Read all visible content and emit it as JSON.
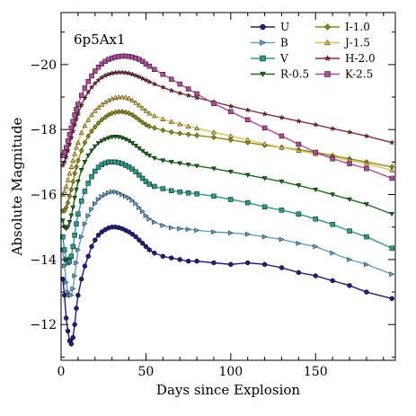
{
  "chart_data": {
    "type": "line",
    "annotation": "6p5Ax1",
    "xlabel": "Days since Explosion",
    "ylabel": "Absolute Magnitude",
    "xlim": [
      0,
      197
    ],
    "ylim": [
      -10.9,
      -21.6
    ],
    "y_inverted": true,
    "xticks": [
      0,
      50,
      100,
      150
    ],
    "yticks": [
      -12,
      -14,
      -16,
      -18,
      -20
    ],
    "grid": false,
    "legend": "top-right, two columns",
    "series": [
      {
        "name": "U",
        "color": "#1f1f7a",
        "marker": "circle",
        "x": [
          1,
          2,
          3,
          4,
          5,
          6,
          7,
          8,
          9,
          10,
          12,
          14,
          16,
          18,
          20,
          22,
          24,
          26,
          28,
          30,
          32,
          34,
          36,
          38,
          40,
          42,
          44,
          46,
          48,
          50,
          52,
          55,
          60,
          65,
          70,
          75,
          80,
          90,
          100,
          110,
          120,
          130,
          140,
          150,
          160,
          170,
          180,
          195
        ],
        "y": [
          -13.4,
          -12.9,
          -12.2,
          -11.8,
          -11.5,
          -11.4,
          -11.6,
          -12.0,
          -12.5,
          -12.9,
          -13.4,
          -13.8,
          -14.1,
          -14.4,
          -14.6,
          -14.75,
          -14.85,
          -14.92,
          -14.97,
          -15.0,
          -15.0,
          -14.98,
          -14.95,
          -14.9,
          -14.85,
          -14.78,
          -14.7,
          -14.6,
          -14.5,
          -14.4,
          -14.3,
          -14.2,
          -14.1,
          -14.05,
          -14.0,
          -13.95,
          -13.95,
          -13.9,
          -13.85,
          -13.9,
          -13.85,
          -13.75,
          -13.6,
          -13.5,
          -13.35,
          -13.2,
          -13.0,
          -12.8
        ]
      },
      {
        "name": "B",
        "color": "#5fa0c8",
        "marker": "triangle-right",
        "x": [
          1,
          2,
          3,
          4,
          5,
          6,
          7,
          8,
          9,
          10,
          12,
          14,
          16,
          18,
          20,
          22,
          24,
          26,
          28,
          30,
          32,
          34,
          36,
          38,
          40,
          42,
          44,
          46,
          48,
          50,
          52,
          55,
          60,
          65,
          70,
          75,
          80,
          90,
          100,
          110,
          120,
          130,
          140,
          150,
          160,
          170,
          180,
          195
        ],
        "y": [
          -14.3,
          -13.8,
          -13.3,
          -13.0,
          -12.9,
          -12.9,
          -13.1,
          -13.5,
          -13.9,
          -14.3,
          -14.7,
          -15.1,
          -15.35,
          -15.55,
          -15.72,
          -15.85,
          -15.94,
          -16.0,
          -16.05,
          -16.08,
          -16.08,
          -16.05,
          -16.0,
          -15.95,
          -15.9,
          -15.82,
          -15.72,
          -15.6,
          -15.48,
          -15.35,
          -15.25,
          -15.15,
          -15.05,
          -14.98,
          -14.95,
          -14.93,
          -14.9,
          -14.85,
          -14.82,
          -14.78,
          -14.7,
          -14.62,
          -14.5,
          -14.4,
          -14.2,
          -14.0,
          -13.85,
          -13.55
        ]
      },
      {
        "name": "V",
        "color": "#2a9a8a",
        "marker": "square",
        "x": [
          1,
          2,
          3,
          4,
          5,
          6,
          7,
          8,
          9,
          10,
          12,
          14,
          16,
          18,
          20,
          22,
          24,
          26,
          28,
          30,
          32,
          34,
          36,
          38,
          40,
          42,
          44,
          46,
          48,
          50,
          52,
          55,
          60,
          65,
          70,
          75,
          80,
          90,
          100,
          110,
          120,
          130,
          140,
          150,
          160,
          170,
          180,
          195
        ],
        "y": [
          -14.7,
          -14.3,
          -14.0,
          -13.9,
          -13.95,
          -14.1,
          -14.4,
          -14.75,
          -15.1,
          -15.4,
          -15.8,
          -16.1,
          -16.35,
          -16.55,
          -16.72,
          -16.84,
          -16.92,
          -16.97,
          -17.0,
          -17.0,
          -17.0,
          -16.98,
          -16.95,
          -16.9,
          -16.85,
          -16.78,
          -16.7,
          -16.6,
          -16.5,
          -16.4,
          -16.32,
          -16.25,
          -16.18,
          -16.12,
          -16.08,
          -16.05,
          -16.02,
          -15.95,
          -15.85,
          -15.75,
          -15.62,
          -15.52,
          -15.4,
          -15.25,
          -15.08,
          -14.88,
          -14.7,
          -14.35
        ]
      },
      {
        "name": "R-0.5",
        "color": "#1a6b1a",
        "marker": "triangle-down",
        "x": [
          1,
          2,
          3,
          4,
          5,
          6,
          7,
          8,
          9,
          10,
          12,
          14,
          16,
          18,
          20,
          22,
          24,
          26,
          28,
          30,
          32,
          34,
          36,
          38,
          40,
          42,
          44,
          46,
          48,
          50,
          52,
          55,
          60,
          65,
          70,
          75,
          80,
          90,
          100,
          110,
          120,
          130,
          140,
          150,
          160,
          170,
          180,
          195
        ],
        "y": [
          -15.2,
          -15.0,
          -14.95,
          -15.0,
          -15.15,
          -15.35,
          -15.6,
          -15.9,
          -16.15,
          -16.4,
          -16.75,
          -17.0,
          -17.2,
          -17.35,
          -17.48,
          -17.58,
          -17.65,
          -17.7,
          -17.74,
          -17.77,
          -17.78,
          -17.77,
          -17.74,
          -17.7,
          -17.65,
          -17.58,
          -17.5,
          -17.42,
          -17.34,
          -17.26,
          -17.2,
          -17.12,
          -17.05,
          -17.0,
          -16.96,
          -16.92,
          -16.88,
          -16.8,
          -16.7,
          -16.6,
          -16.5,
          -16.4,
          -16.28,
          -16.15,
          -16.0,
          -15.85,
          -15.7,
          -15.4
        ]
      },
      {
        "name": "I-1.0",
        "color": "#8a8a10",
        "marker": "diamond",
        "x": [
          1,
          2,
          3,
          4,
          5,
          6,
          7,
          8,
          9,
          10,
          12,
          14,
          16,
          18,
          20,
          22,
          24,
          26,
          28,
          30,
          32,
          34,
          36,
          38,
          40,
          42,
          44,
          46,
          48,
          50,
          52,
          55,
          60,
          65,
          70,
          75,
          80,
          90,
          100,
          110,
          120,
          130,
          140,
          150,
          160,
          170,
          180,
          195
        ],
        "y": [
          -15.5,
          -15.5,
          -15.6,
          -15.75,
          -15.95,
          -16.15,
          -16.4,
          -16.65,
          -16.85,
          -17.05,
          -17.35,
          -17.6,
          -17.8,
          -17.95,
          -18.08,
          -18.2,
          -18.3,
          -18.38,
          -18.45,
          -18.5,
          -18.53,
          -18.55,
          -18.55,
          -18.53,
          -18.5,
          -18.45,
          -18.38,
          -18.3,
          -18.22,
          -18.15,
          -18.1,
          -18.05,
          -17.98,
          -17.92,
          -17.88,
          -17.85,
          -17.82,
          -17.76,
          -17.68,
          -17.6,
          -17.52,
          -17.45,
          -17.38,
          -17.3,
          -17.2,
          -17.1,
          -17.0,
          -16.85
        ]
      },
      {
        "name": "J-1.5",
        "color": "#e0c050",
        "marker": "triangle-up",
        "x": [
          1,
          2,
          3,
          4,
          5,
          6,
          7,
          8,
          9,
          10,
          12,
          14,
          16,
          18,
          20,
          22,
          24,
          26,
          28,
          30,
          32,
          34,
          36,
          38,
          40,
          42,
          44,
          46,
          48,
          50,
          52,
          55,
          60,
          65,
          70,
          75,
          80,
          90,
          100,
          110,
          120,
          130,
          140,
          150,
          160,
          170,
          180,
          195
        ],
        "y": [
          -16.0,
          -16.1,
          -16.25,
          -16.45,
          -16.65,
          -16.85,
          -17.05,
          -17.25,
          -17.45,
          -17.6,
          -17.9,
          -18.12,
          -18.3,
          -18.45,
          -18.58,
          -18.68,
          -18.77,
          -18.84,
          -18.9,
          -18.95,
          -18.98,
          -19.0,
          -19.0,
          -18.99,
          -18.96,
          -18.9,
          -18.83,
          -18.75,
          -18.66,
          -18.58,
          -18.5,
          -18.42,
          -18.32,
          -18.24,
          -18.17,
          -18.1,
          -18.04,
          -17.92,
          -17.8,
          -17.68,
          -17.56,
          -17.45,
          -17.35,
          -17.25,
          -17.15,
          -17.05,
          -16.95,
          -16.75
        ]
      },
      {
        "name": "H-2.0",
        "color": "#8b2a3a",
        "marker": "star",
        "x": [
          1,
          2,
          3,
          4,
          5,
          6,
          7,
          8,
          9,
          10,
          12,
          14,
          16,
          18,
          20,
          22,
          24,
          26,
          28,
          30,
          32,
          34,
          36,
          38,
          40,
          42,
          44,
          46,
          48,
          50,
          52,
          55,
          60,
          65,
          70,
          75,
          80,
          90,
          100,
          110,
          120,
          130,
          140,
          150,
          160,
          170,
          180,
          195
        ],
        "y": [
          -16.9,
          -17.0,
          -17.15,
          -17.35,
          -17.55,
          -17.75,
          -17.95,
          -18.15,
          -18.32,
          -18.48,
          -18.75,
          -18.97,
          -19.15,
          -19.3,
          -19.42,
          -19.52,
          -19.6,
          -19.66,
          -19.7,
          -19.73,
          -19.75,
          -19.76,
          -19.76,
          -19.75,
          -19.73,
          -19.7,
          -19.66,
          -19.62,
          -19.57,
          -19.52,
          -19.47,
          -19.4,
          -19.3,
          -19.2,
          -19.12,
          -19.05,
          -18.98,
          -18.85,
          -18.72,
          -18.6,
          -18.48,
          -18.37,
          -18.26,
          -18.15,
          -18.03,
          -17.92,
          -17.8,
          -17.6
        ]
      },
      {
        "name": "K-2.5",
        "color": "#b04a9a",
        "marker": "square",
        "x": [
          1,
          2,
          3,
          4,
          5,
          6,
          7,
          8,
          9,
          10,
          12,
          14,
          16,
          18,
          20,
          22,
          24,
          26,
          28,
          30,
          32,
          34,
          36,
          38,
          40,
          42,
          44,
          46,
          48,
          50,
          52,
          55,
          60,
          65,
          70,
          75,
          80,
          90,
          100,
          110,
          120,
          130,
          140,
          150,
          160,
          170,
          180,
          195
        ],
        "y": [
          -17.2,
          -17.3,
          -17.45,
          -17.65,
          -17.85,
          -18.05,
          -18.25,
          -18.45,
          -18.62,
          -18.78,
          -19.05,
          -19.28,
          -19.48,
          -19.65,
          -19.8,
          -19.92,
          -20.02,
          -20.1,
          -20.16,
          -20.2,
          -20.23,
          -20.25,
          -20.26,
          -20.26,
          -20.25,
          -20.23,
          -20.2,
          -20.16,
          -20.1,
          -20.02,
          -19.95,
          -19.85,
          -19.7,
          -19.55,
          -19.4,
          -19.25,
          -19.1,
          -18.8,
          -18.55,
          -18.3,
          -18.05,
          -17.8,
          -17.55,
          -17.3,
          -17.1,
          -16.95,
          -16.8,
          -16.5
        ]
      }
    ]
  }
}
